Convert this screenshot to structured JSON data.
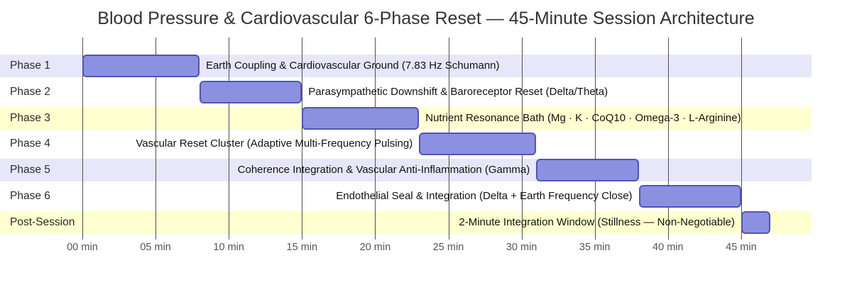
{
  "chart_data": {
    "type": "gantt-bar",
    "title": "Blood Pressure & Cardiovascular 6-Phase Reset — 45-Minute Session Architecture",
    "x_axis": {
      "unit": "min",
      "tick_values": [
        0,
        5,
        10,
        15,
        20,
        25,
        30,
        35,
        40,
        45
      ],
      "tick_labels": [
        "00 min",
        "05 min",
        "10 min",
        "15 min",
        "20 min",
        "25 min",
        "30 min",
        "35 min",
        "40 min",
        "45 min"
      ],
      "range": [
        0,
        47
      ],
      "grid": true
    },
    "rows": [
      {
        "name": "Phase 1",
        "start": 0,
        "end": 8,
        "duration_min": 8,
        "label": "Earth Coupling & Cardiovascular Ground (7.83 Hz Schumann)",
        "label_side": "right",
        "band": "lavender"
      },
      {
        "name": "Phase 2",
        "start": 8,
        "end": 15,
        "duration_min": 7,
        "label": "Parasympathetic Downshift & Baroreceptor Reset (Delta/Theta)",
        "label_side": "right",
        "band": "white"
      },
      {
        "name": "Phase 3",
        "start": 15,
        "end": 23,
        "duration_min": 8,
        "label": "Nutrient Resonance Bath (Mg · K · CoQ10 · Omega-3 · L-Arginine)",
        "label_side": "right",
        "band": "yellow"
      },
      {
        "name": "Phase 4",
        "start": 23,
        "end": 31,
        "duration_min": 8,
        "label": "Vascular Reset Cluster (Adaptive Multi-Frequency Pulsing)",
        "label_side": "left",
        "band": "white"
      },
      {
        "name": "Phase 5",
        "start": 31,
        "end": 38,
        "duration_min": 7,
        "label": "Coherence Integration & Vascular Anti-Inflammation (Gamma)",
        "label_side": "left",
        "band": "lavender"
      },
      {
        "name": "Phase 6",
        "start": 38,
        "end": 45,
        "duration_min": 7,
        "label": "Endothelial Seal & Integration (Delta + Earth Frequency Close)",
        "label_side": "left",
        "band": "white"
      },
      {
        "name": "Post-Session",
        "start": 45,
        "end": 47,
        "duration_min": 2,
        "label": "2-Minute Integration Window (Stillness — Non-Negotiable)",
        "label_side": "left",
        "band": "yellow"
      }
    ]
  },
  "colors": {
    "bar_fill": "#8c90e0",
    "bar_border": "#5254b4",
    "row_lavender": "#e7e7f9",
    "row_yellow": "#ffffd0",
    "row_white": "#ffffff",
    "gridline": "#505050",
    "title_text": "#333333",
    "row_label_text": "#2b2b2b",
    "task_label_text": "#111111",
    "tick_text": "#555555"
  }
}
